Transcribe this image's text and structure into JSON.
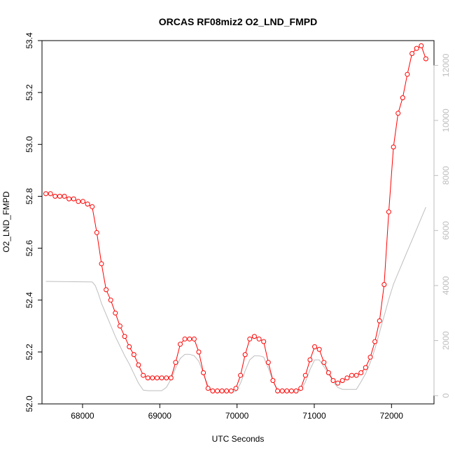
{
  "chart_data": {
    "type": "line",
    "title": "ORCAS RF08miz2 O2_LND_FMPD",
    "xlabel": "UTC Seconds",
    "ylabel": "O2_LND_FMPD",
    "xlim": [
      67475,
      72550
    ],
    "ylim": [
      52.0,
      53.4
    ],
    "y2lim": [
      -300,
      12900
    ],
    "x_ticks": [
      68000,
      69000,
      70000,
      71000,
      72000
    ],
    "y_ticks": [
      52.0,
      52.2,
      52.4,
      52.6,
      52.8,
      53.0,
      53.2,
      53.4
    ],
    "y2_ticks": [
      0,
      2000,
      4000,
      6000,
      8000,
      10000,
      12000
    ],
    "colors": {
      "primary": "#ff0000",
      "secondary": "#bebebe",
      "axis": "#000000",
      "axis2": "#bebebe"
    },
    "series": [
      {
        "axis": "left",
        "style": "line+markers",
        "x": [
          67525,
          67585,
          67645,
          67705,
          67765,
          67825,
          67885,
          67945,
          68005,
          68065,
          68125,
          68185,
          68245,
          68305,
          68365,
          68425,
          68485,
          68545,
          68605,
          68665,
          68725,
          68785,
          68845,
          68905,
          68965,
          69025,
          69085,
          69145,
          69205,
          69265,
          69325,
          69385,
          69445,
          69505,
          69565,
          69625,
          69685,
          69745,
          69805,
          69865,
          69925,
          69985,
          70045,
          70105,
          70165,
          70225,
          70285,
          70345,
          70405,
          70465,
          70525,
          70585,
          70645,
          70705,
          70765,
          70825,
          70885,
          70945,
          71005,
          71065,
          71125,
          71185,
          71245,
          71305,
          71365,
          71425,
          71485,
          71545,
          71605,
          71665,
          71725,
          71785,
          71845,
          71905,
          71965,
          72025,
          72085,
          72145,
          72205,
          72265,
          72325,
          72385,
          72445
        ],
        "y": [
          52.81,
          52.81,
          52.8,
          52.8,
          52.8,
          52.79,
          52.79,
          52.78,
          52.78,
          52.77,
          52.76,
          52.66,
          52.54,
          52.44,
          52.4,
          52.35,
          52.3,
          52.26,
          52.22,
          52.19,
          52.15,
          52.11,
          52.1,
          52.1,
          52.1,
          52.1,
          52.1,
          52.1,
          52.16,
          52.23,
          52.25,
          52.25,
          52.25,
          52.2,
          52.12,
          52.06,
          52.05,
          52.05,
          52.05,
          52.05,
          52.05,
          52.06,
          52.11,
          52.19,
          52.25,
          52.26,
          52.25,
          52.24,
          52.16,
          52.09,
          52.05,
          52.05,
          52.05,
          52.05,
          52.05,
          52.06,
          52.11,
          52.17,
          52.22,
          52.21,
          52.16,
          52.12,
          52.09,
          52.08,
          52.09,
          52.1,
          52.11,
          52.11,
          52.12,
          52.14,
          52.18,
          52.24,
          52.32,
          52.46,
          52.74,
          52.99,
          53.12,
          53.18,
          53.27,
          53.35,
          53.37,
          53.38,
          53.33
        ]
      },
      {
        "axis": "right",
        "style": "line",
        "x": [
          67525,
          68125,
          68165,
          68205,
          68245,
          68305,
          68365,
          68425,
          68485,
          68545,
          68605,
          68665,
          68725,
          68785,
          68845,
          68905,
          68965,
          69025,
          69085,
          69145,
          69205,
          69265,
          69325,
          69385,
          69445,
          69505,
          69565,
          69625,
          69685,
          69745,
          69805,
          69865,
          69925,
          69985,
          70045,
          70105,
          70165,
          70225,
          70285,
          70345,
          70405,
          70465,
          70525,
          70585,
          70645,
          70705,
          70765,
          70825,
          70885,
          70945,
          71005,
          71065,
          71125,
          71185,
          71245,
          71305,
          71365,
          71425,
          71485,
          71545,
          71605,
          71665,
          71725,
          71785,
          71845,
          71905,
          71965,
          72025,
          72085,
          72145,
          72205,
          72265,
          72325,
          72385,
          72445
        ],
        "y": [
          4150,
          4130,
          4000,
          3700,
          3350,
          2950,
          2550,
          2150,
          1800,
          1450,
          1150,
          800,
          450,
          200,
          180,
          180,
          180,
          180,
          300,
          600,
          1000,
          1350,
          1500,
          1500,
          1450,
          1250,
          800,
          350,
          150,
          150,
          150,
          150,
          150,
          150,
          450,
          900,
          1300,
          1450,
          1450,
          1400,
          1000,
          550,
          200,
          150,
          150,
          150,
          150,
          180,
          500,
          950,
          1300,
          1300,
          1050,
          800,
          500,
          300,
          230,
          230,
          230,
          230,
          500,
          800,
          1200,
          1700,
          2300,
          2900,
          3500,
          4050,
          4450,
          4850,
          5250,
          5650,
          6050,
          6450,
          6850
        ]
      }
    ]
  }
}
